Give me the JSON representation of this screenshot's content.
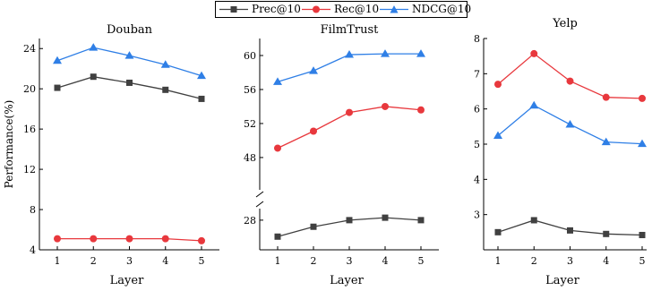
{
  "legend": {
    "series": [
      {
        "label": "Prec@10",
        "color": "#404040",
        "marker": "square"
      },
      {
        "label": "Rec@10",
        "color": "#e8383d",
        "marker": "circle"
      },
      {
        "label": "NDCG@10",
        "color": "#2f7fe6",
        "marker": "triangle"
      }
    ]
  },
  "chart_data": [
    {
      "type": "line",
      "title": "Douban",
      "xlabel": "Layer",
      "ylabel": "Performance(%)",
      "x": [
        1,
        2,
        3,
        4,
        5
      ],
      "ylim": [
        4,
        25
      ],
      "yticks": [
        4,
        8,
        12,
        16,
        20,
        24
      ],
      "grid": false,
      "series": [
        {
          "name": "Prec@10",
          "values": [
            20.1,
            21.2,
            20.6,
            19.9,
            19.0
          ]
        },
        {
          "name": "Rec@10",
          "values": [
            5.1,
            5.1,
            5.1,
            5.1,
            4.9
          ]
        },
        {
          "name": "NDCG@10",
          "values": [
            22.8,
            24.1,
            23.3,
            22.4,
            21.3
          ]
        }
      ]
    },
    {
      "type": "line",
      "title": "FilmTrust",
      "xlabel": "Layer",
      "ylabel": "",
      "x": [
        1,
        2,
        3,
        4,
        5
      ],
      "broken_axis": true,
      "lower_ylim": [
        24.4,
        29.4
      ],
      "lower_yticks": [
        28
      ],
      "upper_ylim": [
        44.2,
        62.0
      ],
      "upper_yticks": [
        48,
        52,
        56,
        60
      ],
      "grid": false,
      "series": [
        {
          "name": "Prec@10",
          "values": [
            26.0,
            27.2,
            28.0,
            28.3,
            28.0
          ]
        },
        {
          "name": "Rec@10",
          "values": [
            49.1,
            51.1,
            53.3,
            54.0,
            53.6
          ]
        },
        {
          "name": "NDCG@10",
          "values": [
            56.9,
            58.2,
            60.1,
            60.2,
            60.2
          ]
        }
      ]
    },
    {
      "type": "line",
      "title": "Yelp",
      "xlabel": "Layer",
      "ylabel": "",
      "x": [
        1,
        2,
        3,
        4,
        5
      ],
      "ylim": [
        2,
        8
      ],
      "yticks": [
        3,
        4,
        5,
        6,
        7,
        8
      ],
      "grid": false,
      "series": [
        {
          "name": "Prec@10",
          "values": [
            2.5,
            2.84,
            2.55,
            2.45,
            2.42
          ]
        },
        {
          "name": "Rec@10",
          "values": [
            6.7,
            7.57,
            6.79,
            6.33,
            6.3
          ]
        },
        {
          "name": "NDCG@10",
          "values": [
            5.24,
            6.1,
            5.56,
            5.06,
            5.01
          ]
        }
      ]
    }
  ]
}
